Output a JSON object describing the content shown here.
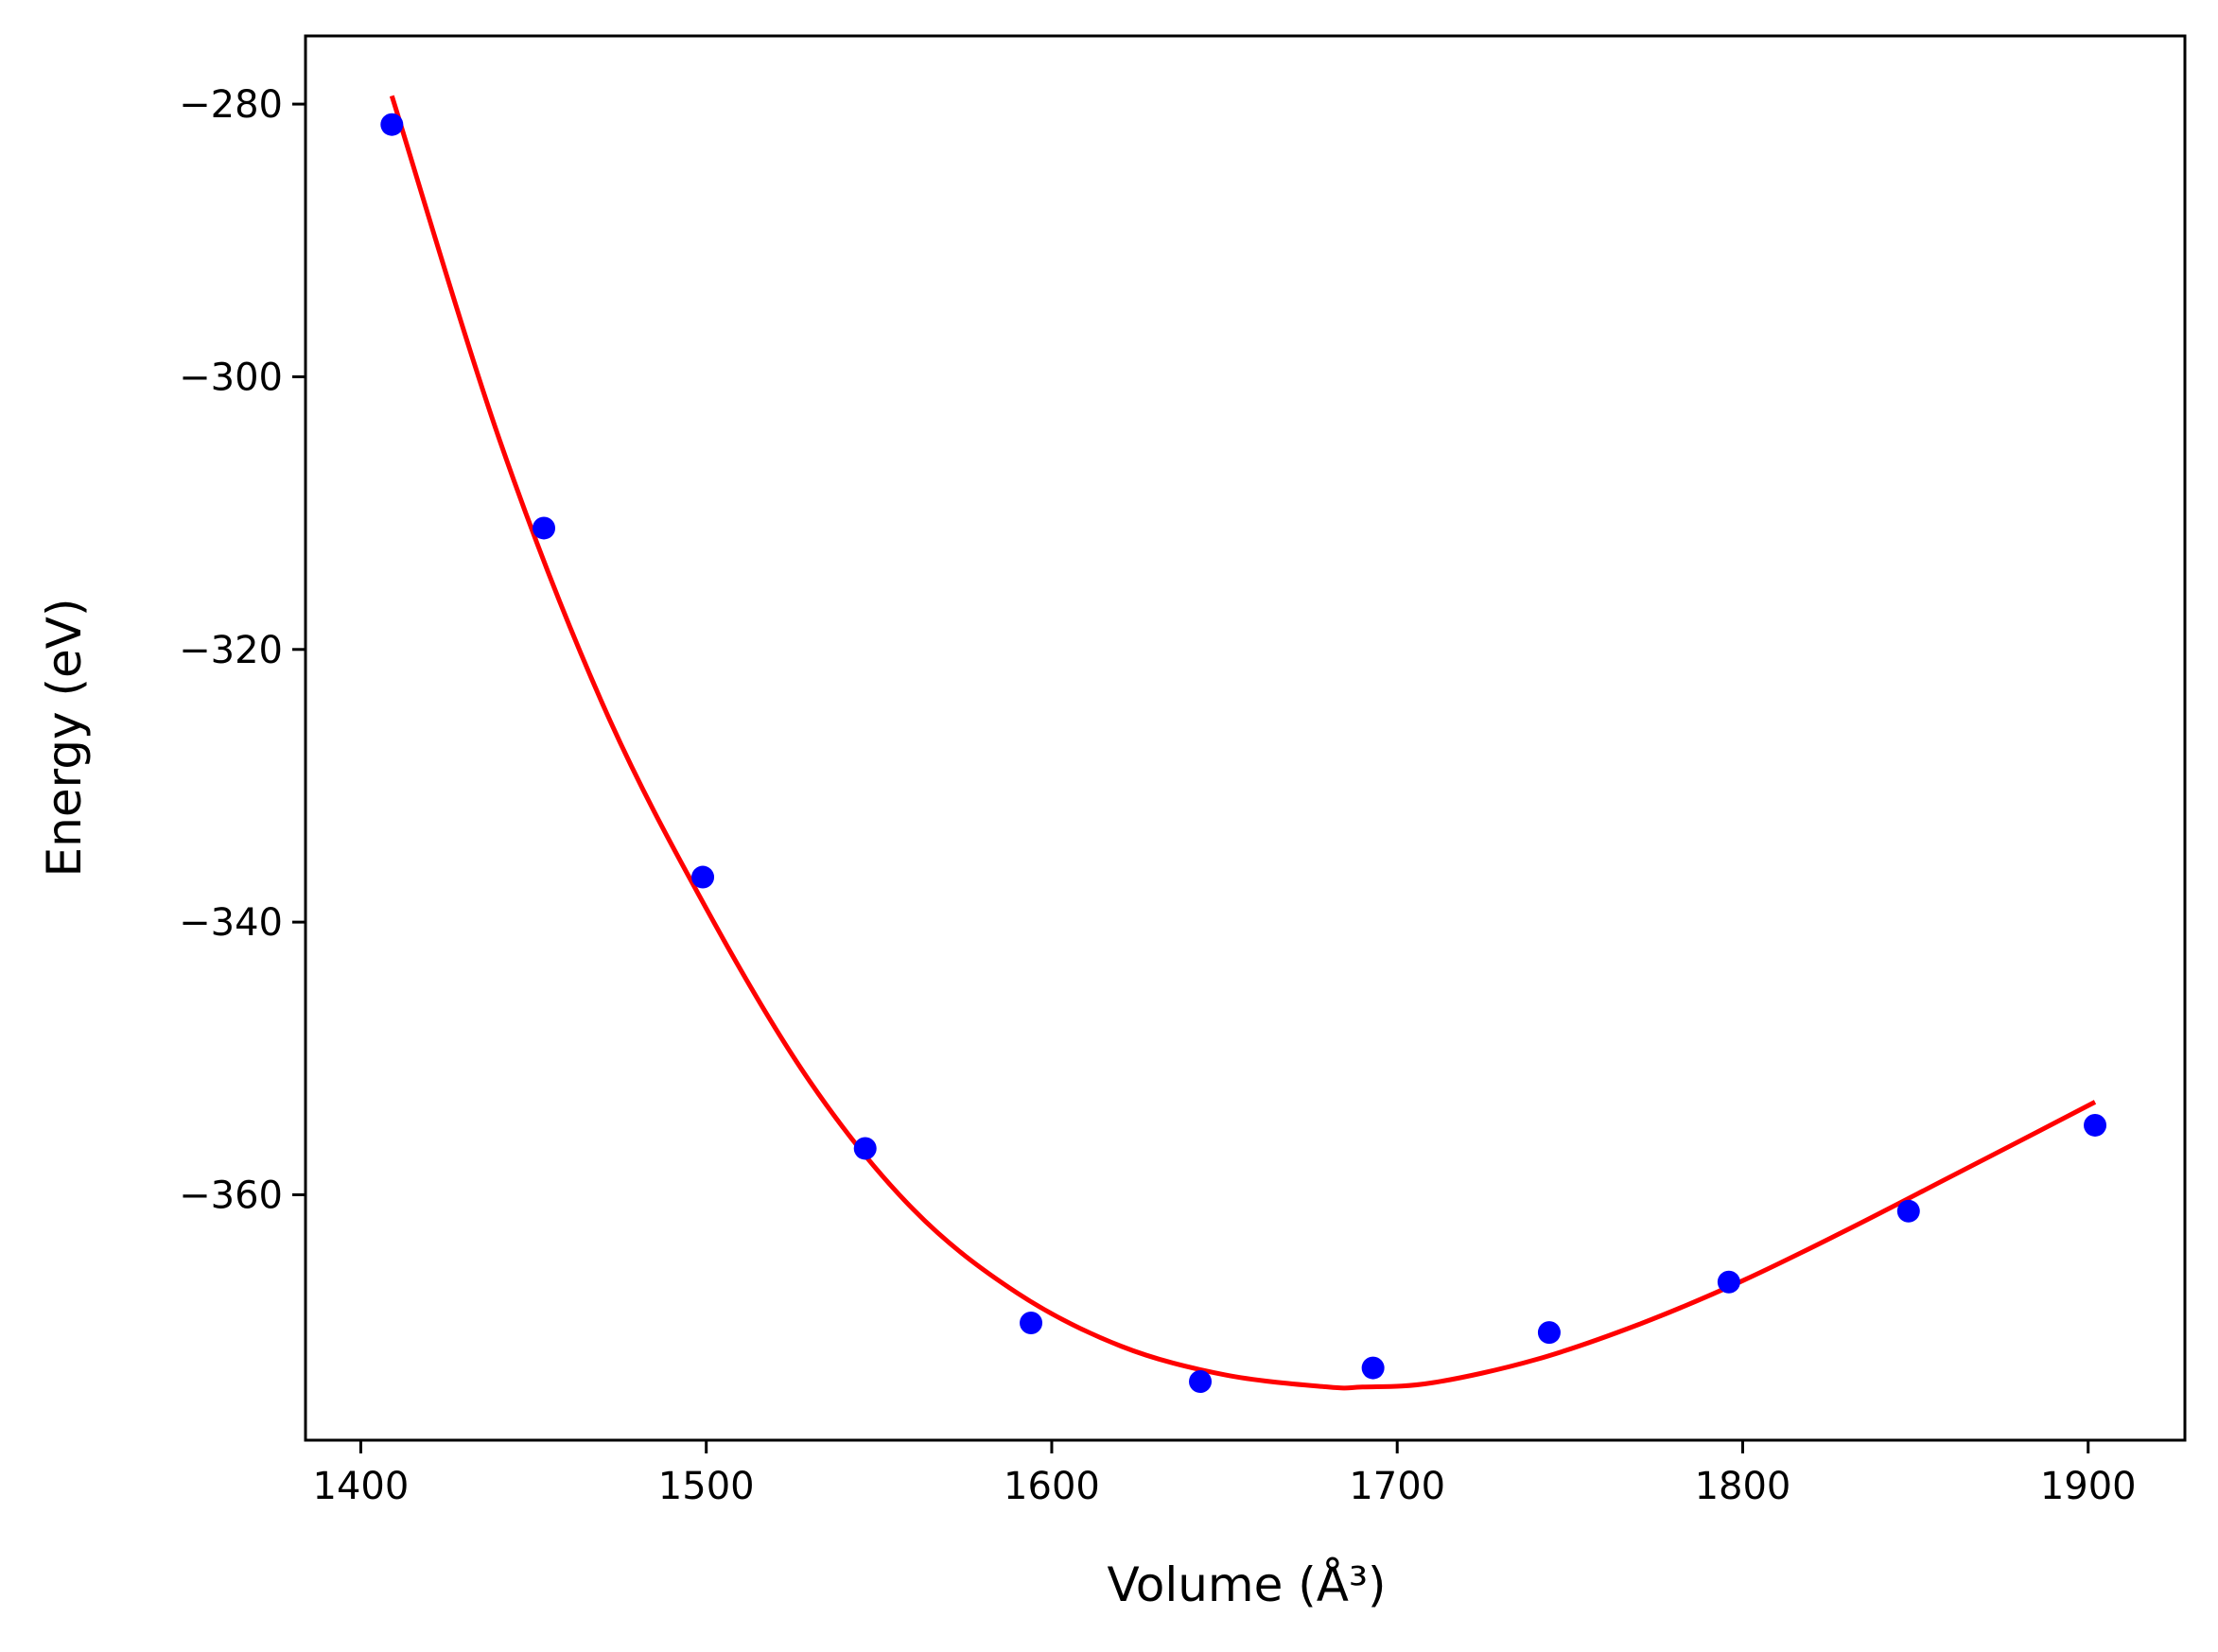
{
  "chart_data": {
    "type": "scatter",
    "title": "",
    "xlabel": "Volume (Å³)",
    "ylabel": "Energy (eV)",
    "xlim": [
      1384,
      1928
    ],
    "ylim": [
      -378,
      -275
    ],
    "x_ticks": [
      1400,
      1500,
      1600,
      1700,
      1800,
      1900
    ],
    "y_ticks": [
      -280,
      -300,
      -320,
      -340,
      -360
    ],
    "x_tick_labels": [
      "1400",
      "1500",
      "1600",
      "1700",
      "1800",
      "1900"
    ],
    "y_tick_labels": [
      "−280",
      "−300",
      "−320",
      "−340",
      "−360"
    ],
    "grid": false,
    "legend": "none",
    "series": [
      {
        "kind": "scatter",
        "color": "#0000ff",
        "x": [
          1409,
          1453,
          1499,
          1546,
          1594,
          1643,
          1693,
          1744,
          1796,
          1848,
          1902
        ],
        "y": [
          -281.5,
          -311.1,
          -336.7,
          -356.6,
          -369.4,
          -373.7,
          -372.7,
          -370.1,
          -366.4,
          -361.2,
          -354.9
        ]
      },
      {
        "kind": "line",
        "color": "#ff0000",
        "x": [
          1409,
          1440,
          1470,
          1500,
          1530,
          1560,
          1590,
          1620,
          1650,
          1680,
          1690,
          1710,
          1740,
          1770,
          1800,
          1830,
          1860,
          1902
        ],
        "y": [
          -279.4,
          -304.5,
          -324.0,
          -339.0,
          -351.7,
          -361.1,
          -367.2,
          -371.1,
          -373.2,
          -374.1,
          -374.1,
          -373.8,
          -372.1,
          -369.5,
          -366.3,
          -362.6,
          -358.7,
          -353.2
        ]
      }
    ]
  }
}
